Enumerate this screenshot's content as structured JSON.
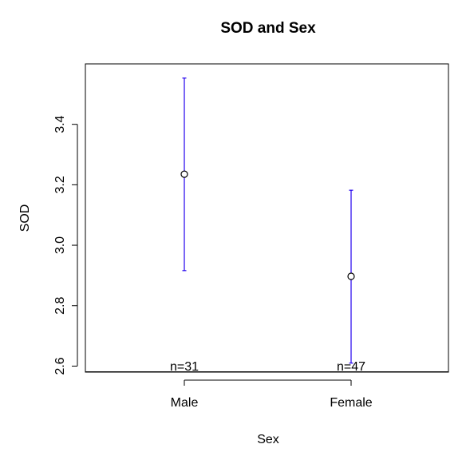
{
  "chart_data": {
    "type": "errorbar",
    "title": "SOD and Sex",
    "xlabel": "Sex",
    "ylabel": "SOD",
    "categories": [
      "Male",
      "Female"
    ],
    "means": [
      3.235,
      2.897
    ],
    "lower": [
      2.916,
      2.61
    ],
    "upper": [
      3.553,
      3.182
    ],
    "n_labels": [
      "n=31",
      "n=47"
    ],
    "yticks": [
      "2.6",
      "2.8",
      "3.0",
      "3.2",
      "3.4"
    ],
    "ylim": [
      2.58,
      3.6
    ],
    "bar_color": "#2200ee",
    "point_color": "#000000",
    "grid": false,
    "legend": false
  }
}
